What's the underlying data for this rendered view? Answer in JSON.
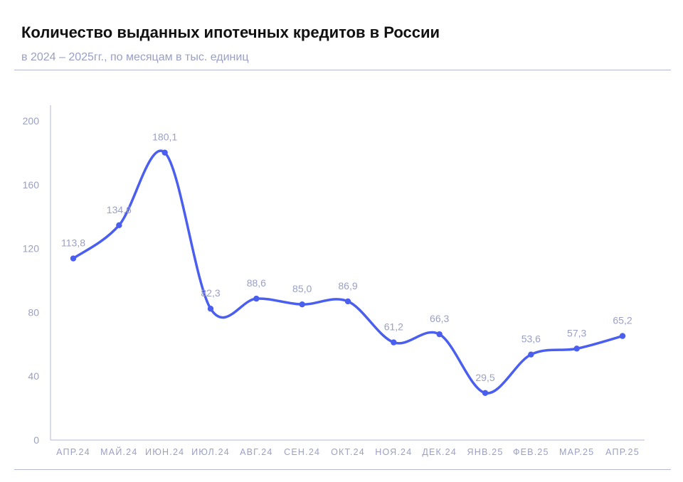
{
  "header": {
    "title": "Количество выданных ипотечных кредитов в России",
    "subtitle": "в 2024 – 2025гг., по месяцам в тыс. единиц"
  },
  "colors": {
    "line": "#4a5ef0",
    "axis": "#b6bad3",
    "label": "#9aa0c4"
  },
  "chart_data": {
    "type": "line",
    "title": "Количество выданных ипотечных кредитов в России",
    "subtitle": "в 2024 – 2025гг., по месяцам в тыс. единиц",
    "xlabel": "",
    "ylabel": "",
    "ylim": [
      0,
      200
    ],
    "yticks": [
      0,
      40,
      80,
      120,
      160,
      200
    ],
    "categories": [
      "АПР.24",
      "МАЙ.24",
      "ИЮН.24",
      "ИЮЛ.24",
      "АВГ.24",
      "СЕН.24",
      "ОКТ.24",
      "НОЯ.24",
      "ДЕК.24",
      "ЯНВ.25",
      "ФЕВ.25",
      "МАР.25",
      "АПР.25"
    ],
    "series": [
      {
        "name": "Количество выданных ипотечных кредитов",
        "values": [
          113.8,
          134.6,
          180.1,
          82.3,
          88.6,
          85.0,
          86.9,
          61.2,
          66.3,
          29.5,
          53.6,
          57.3,
          65.2
        ],
        "value_labels": [
          "113,8",
          "134,6",
          "180,1",
          "82,3",
          "88,6",
          "85,0",
          "86,9",
          "61,2",
          "66,3",
          "29,5",
          "53,6",
          "57,3",
          "65,2"
        ]
      }
    ],
    "grid": false,
    "legend": "none"
  }
}
